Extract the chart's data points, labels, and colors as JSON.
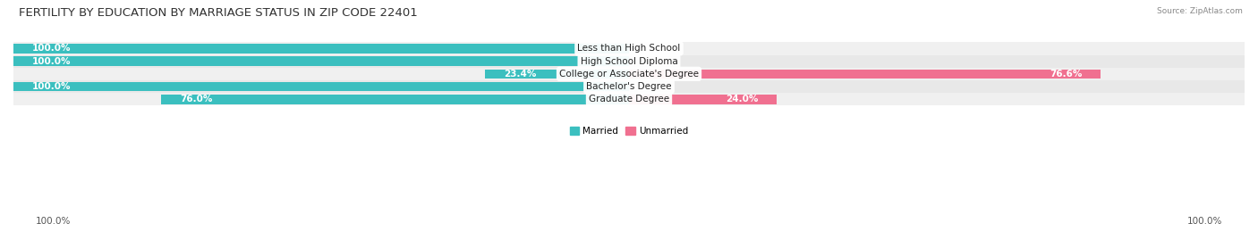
{
  "title": "FERTILITY BY EDUCATION BY MARRIAGE STATUS IN ZIP CODE 22401",
  "source": "Source: ZipAtlas.com",
  "categories": [
    "Less than High School",
    "High School Diploma",
    "College or Associate's Degree",
    "Bachelor's Degree",
    "Graduate Degree"
  ],
  "married": [
    100.0,
    100.0,
    23.4,
    100.0,
    76.0
  ],
  "unmarried": [
    0.0,
    0.0,
    76.6,
    0.0,
    24.0
  ],
  "married_color": "#3bbfbf",
  "unmarried_color": "#f07090",
  "row_colors": [
    "#f0f0f0",
    "#e8e8e8",
    "#f0f0f0",
    "#e8e8e8",
    "#f0f0f0"
  ],
  "title_fontsize": 9.5,
  "label_fontsize": 7.5,
  "tick_fontsize": 7.5,
  "background_color": "#ffffff"
}
